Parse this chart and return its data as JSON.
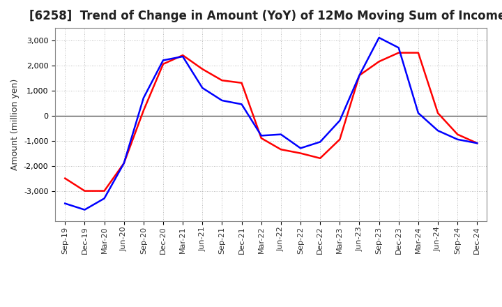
{
  "title": "[6258]  Trend of Change in Amount (YoY) of 12Mo Moving Sum of Incomes",
  "ylabel": "Amount (million yen)",
  "x_labels": [
    "Sep-19",
    "Dec-19",
    "Mar-20",
    "Jun-20",
    "Sep-20",
    "Dec-20",
    "Mar-21",
    "Jun-21",
    "Sep-21",
    "Dec-21",
    "Mar-22",
    "Jun-22",
    "Sep-22",
    "Dec-22",
    "Mar-23",
    "Jun-23",
    "Sep-23",
    "Dec-23",
    "Mar-24",
    "Jun-24",
    "Sep-24",
    "Dec-24"
  ],
  "ordinary_income": [
    -3500,
    -3750,
    -3300,
    -1900,
    700,
    2200,
    2350,
    1100,
    600,
    450,
    -800,
    -750,
    -1300,
    -1050,
    -200,
    1600,
    3100,
    2700,
    100,
    -600,
    -950,
    -1100
  ],
  "net_income": [
    -2500,
    -3000,
    -3000,
    -1900,
    200,
    2050,
    2400,
    1850,
    1400,
    1300,
    -900,
    -1350,
    -1500,
    -1700,
    -950,
    1600,
    2150,
    2500,
    2500,
    100,
    -750,
    -1100
  ],
  "ordinary_color": "#0000ff",
  "net_color": "#ff0000",
  "ylim": [
    -4200,
    3500
  ],
  "yticks": [
    -3000,
    -2000,
    -1000,
    0,
    1000,
    2000,
    3000
  ],
  "background_color": "#ffffff",
  "grid_color": "#aaaaaa",
  "title_fontsize": 12,
  "axis_fontsize": 9,
  "tick_fontsize": 8,
  "legend_fontsize": 9
}
